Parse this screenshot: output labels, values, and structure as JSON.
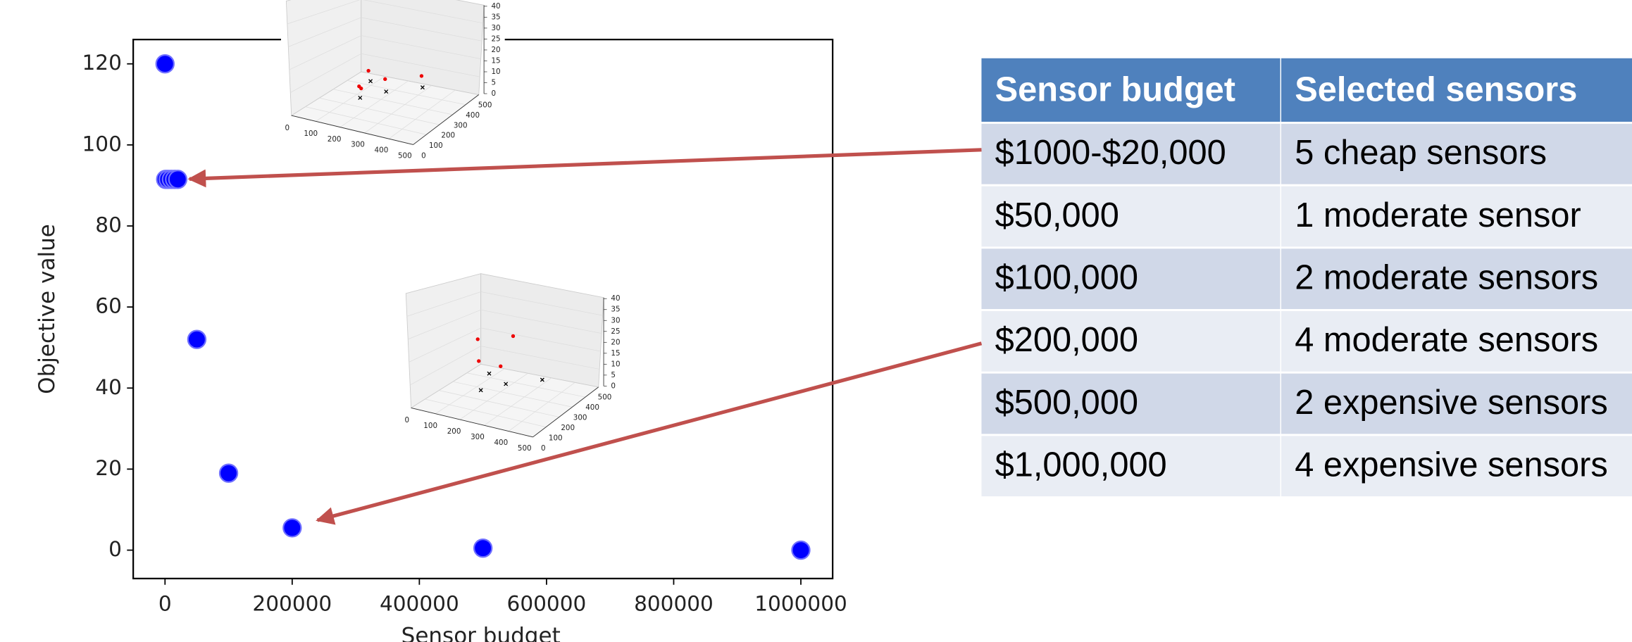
{
  "chart_data": {
    "type": "scatter",
    "xlabel": "Sensor budget",
    "ylabel": "Objective value",
    "x": [
      0,
      1000,
      5000,
      10000,
      15000,
      20000,
      50000,
      100000,
      200000,
      500000,
      1000000
    ],
    "values": [
      120,
      91.5,
      91.5,
      91.5,
      91.5,
      91.5,
      52,
      19,
      5.5,
      0.5,
      0
    ],
    "color": "#0000ff",
    "xlim": [
      -50000,
      1050000
    ],
    "xticks": [
      0,
      200000,
      400000,
      600000,
      800000,
      1000000
    ],
    "ylim": [
      -7,
      126
    ],
    "yticks": [
      0,
      20,
      40,
      60,
      80,
      100,
      120
    ]
  },
  "insets": [
    {
      "xticks": [
        0,
        100,
        200,
        300,
        400,
        500
      ],
      "yticks": [
        0,
        100,
        200,
        300,
        400,
        500
      ],
      "zticks": [
        0,
        5,
        10,
        15,
        20,
        25,
        30,
        35,
        40
      ]
    },
    {
      "xticks": [
        0,
        100,
        200,
        300,
        400,
        500
      ],
      "yticks": [
        0,
        100,
        200,
        300,
        400,
        500
      ],
      "zticks": [
        0,
        5,
        10,
        15,
        20,
        25,
        30,
        35,
        40
      ]
    }
  ],
  "table": {
    "header": [
      "Sensor budget",
      "Selected sensors"
    ],
    "rows": [
      [
        "$1000-$20,000",
        "5 cheap sensors"
      ],
      [
        "$50,000",
        "1 moderate sensor"
      ],
      [
        "$100,000",
        "2 moderate sensors"
      ],
      [
        "$200,000",
        "4 moderate sensors"
      ],
      [
        "$500,000",
        "2 expensive sensors"
      ],
      [
        "$1,000,000",
        "4 expensive sensors"
      ]
    ]
  }
}
